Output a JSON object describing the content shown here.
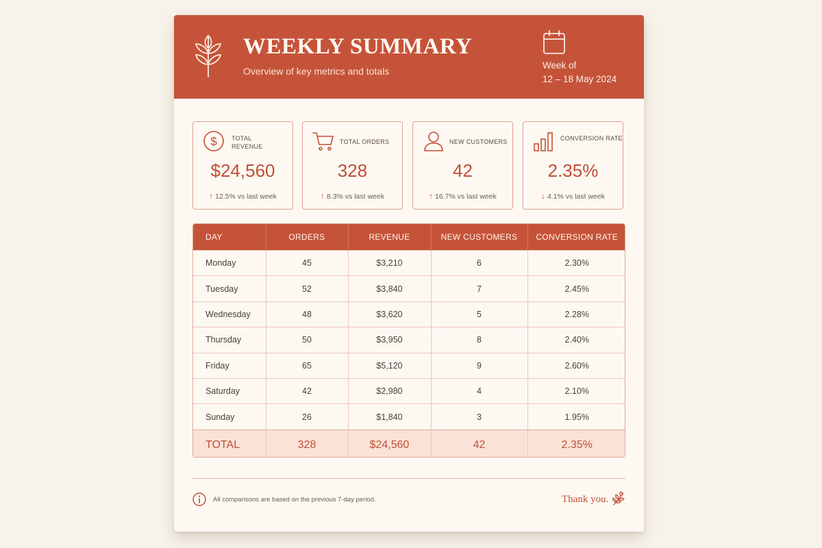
{
  "header": {
    "title": "WEEKLY SUMMARY",
    "subtitle": "Overview of key metrics and totals",
    "week_label": "Week of",
    "week_range": "12 – 18 May 2024",
    "leaf_icon": "leaf-branch-icon",
    "calendar_icon": "calendar-icon"
  },
  "cards": [
    {
      "icon": "dollar-icon",
      "label_1": "TOTAL",
      "label_2": "REVENUE",
      "value": "$24,560",
      "arrow": "↑",
      "change": "12.5% vs last week"
    },
    {
      "icon": "cart-icon",
      "label_1": "TOTAL ORDERS",
      "label_2": "",
      "value": "328",
      "arrow": "↑",
      "change": "8.3% vs last week"
    },
    {
      "icon": "user-icon",
      "label_1": "NEW CUSTOMERS",
      "label_2": "",
      "value": "42",
      "arrow": "↑",
      "change": "16.7% vs last week"
    },
    {
      "icon": "bar-chart-icon",
      "label_1": "CONVERSION RATE",
      "label_2": "",
      "value": "2.35%",
      "arrow": "↓",
      "change": "4.1% vs last week"
    }
  ],
  "table": {
    "headers": [
      "DAY",
      "ORDERS",
      "REVENUE",
      "NEW CUSTOMERS",
      "CONVERSION RATE"
    ],
    "rows": [
      [
        "Monday",
        "45",
        "$3,210",
        "6",
        "2.30%"
      ],
      [
        "Tuesday",
        "52",
        "$3,840",
        "7",
        "2.45%"
      ],
      [
        "Wednesday",
        "48",
        "$3,620",
        "5",
        "2.28%"
      ],
      [
        "Thursday",
        "50",
        "$3,950",
        "8",
        "2.40%"
      ],
      [
        "Friday",
        "65",
        "$5,120",
        "9",
        "2.60%"
      ],
      [
        "Saturday",
        "42",
        "$2,980",
        "4",
        "2.10%"
      ],
      [
        "Sunday",
        "26",
        "$1,840",
        "3",
        "1.95%"
      ]
    ],
    "total": [
      "TOTAL",
      "328",
      "$24,560",
      "42",
      "2.35%"
    ]
  },
  "footer": {
    "info_icon": "info-icon",
    "note": "All comparisons are based on the previous 7-day period.",
    "thanks": "Thank you.",
    "sprig_icon": "sprig-icon"
  },
  "colors": {
    "accent": "#c5533a",
    "background": "#fdf9f2",
    "total_row": "#fae2d8"
  }
}
